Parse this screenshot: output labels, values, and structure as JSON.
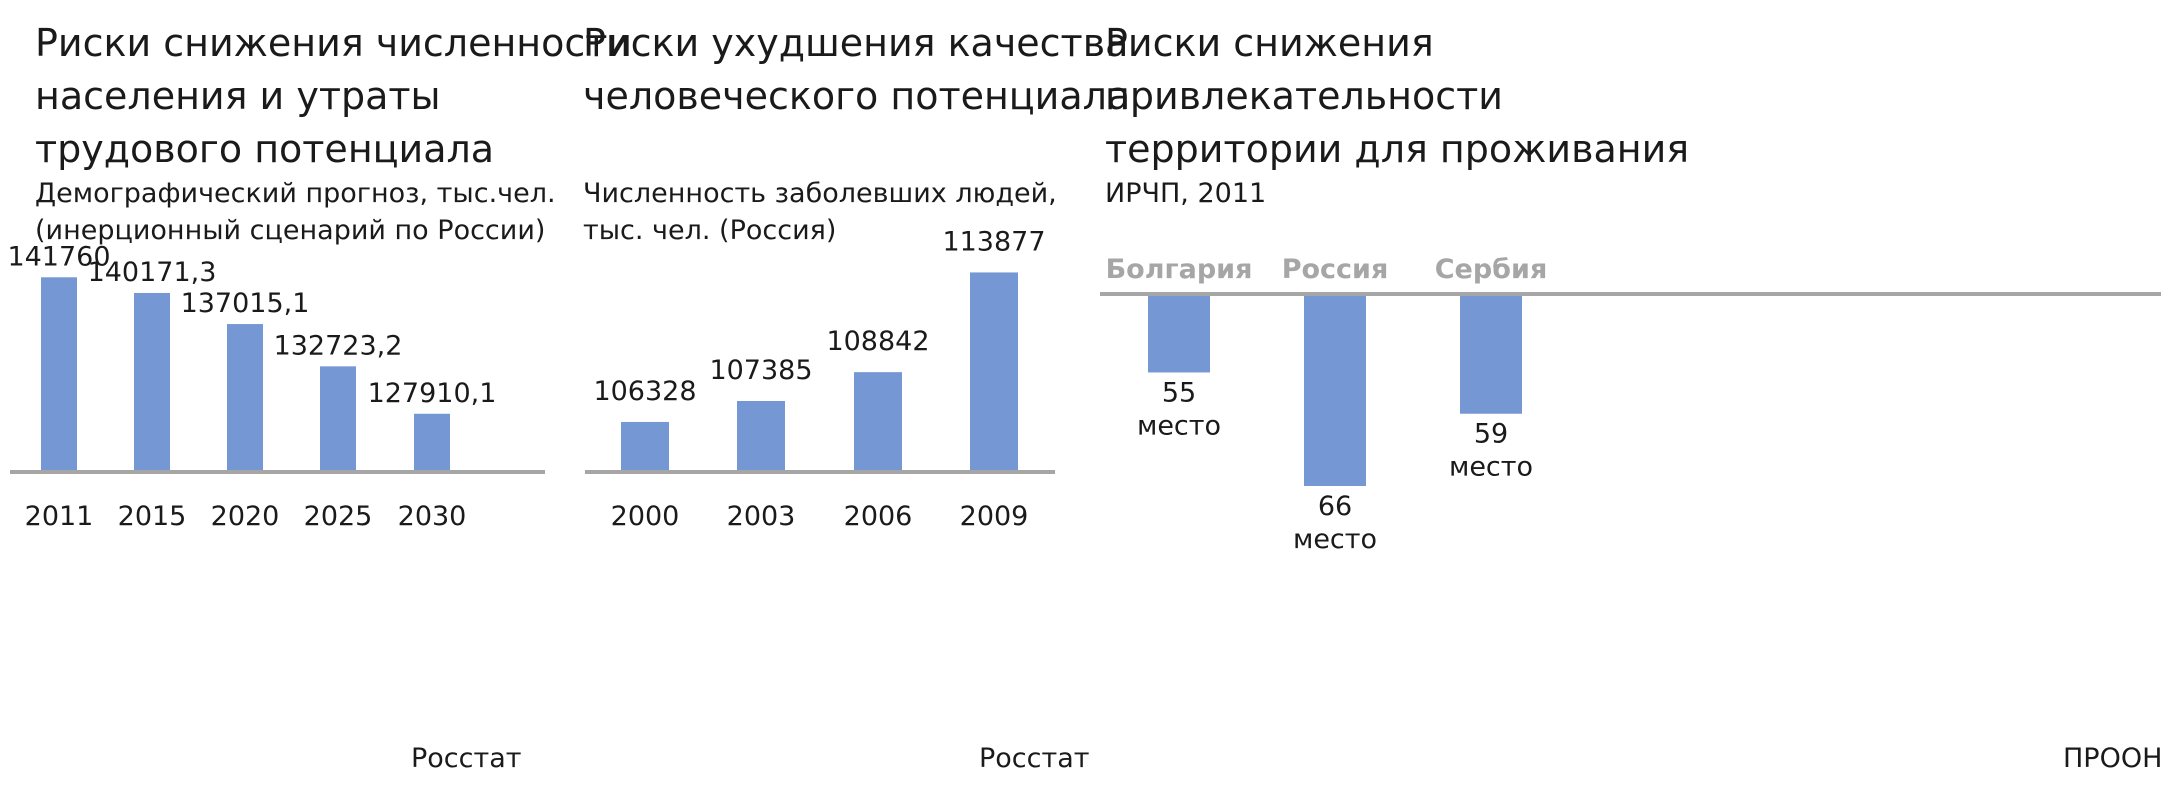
{
  "colors": {
    "bar": "#7597d3",
    "axis": "#a6a6a6",
    "header": "#a6a6a6",
    "text": "#1a1a1a"
  },
  "panels": [
    {
      "title": "Риски снижения численности\nнаселения и утраты\nтрудового потенциала",
      "subtitle": "Демографический прогноз, тыс.чел.\n(инерционный сценарий по России)",
      "source": "Росстат"
    },
    {
      "title": "Риски ухудшения качества\nчеловеческого потенциала",
      "subtitle": "Численность заболевших людей,\nтыс. чел. (Россия)",
      "source": "Росстат"
    },
    {
      "title": "Риски снижения\nпривлекательности\nтерритории для проживания",
      "subtitle": "ИРЧП, 2011",
      "source": "ПРООН"
    }
  ],
  "chart_data": [
    {
      "type": "bar",
      "title": "Демографический прогноз, тыс.чел. (инерционный сценарий по России)",
      "categories": [
        "2011",
        "2015",
        "2020",
        "2025",
        "2030"
      ],
      "values": [
        141760,
        140171.3,
        137015.1,
        132723.2,
        127910.1
      ],
      "value_labels": [
        "141760",
        "140171,3",
        "137015,1",
        "132723,2",
        "127910,1"
      ],
      "ylim": [
        122000,
        142500
      ],
      "grid": false,
      "legend": "none"
    },
    {
      "type": "bar",
      "title": "Численность заболевших людей, тыс. чел. (Россия)",
      "categories": [
        "2000",
        "2003",
        "2006",
        "2009"
      ],
      "values": [
        106328,
        107385,
        108842,
        113877
      ],
      "value_labels": [
        "106328",
        "107385",
        "108842",
        "113877"
      ],
      "ylim": [
        103800,
        114000
      ],
      "grid": false,
      "legend": "none"
    },
    {
      "type": "bar",
      "orientation": "downward",
      "title": "ИРЧП, 2011",
      "categories": [
        "Болгария",
        "Россия",
        "Сербия"
      ],
      "values": [
        55,
        66,
        59
      ],
      "value_labels": [
        "55",
        "66",
        "59"
      ],
      "unit_label": "место",
      "ylim": [
        47.4,
        66
      ],
      "grid": false,
      "legend": "none"
    }
  ]
}
